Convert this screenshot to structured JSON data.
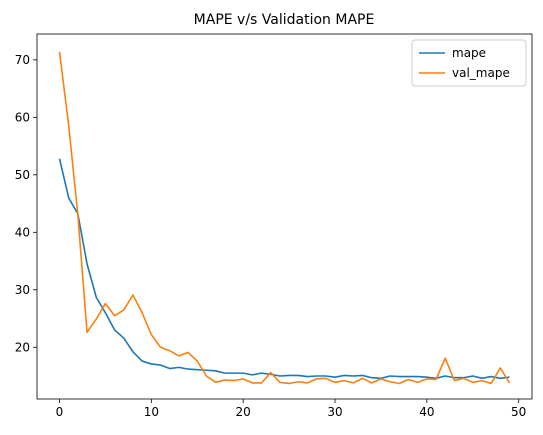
{
  "chart_data": {
    "type": "line",
    "title": "MAPE v/s Validation MAPE",
    "xlabel": "",
    "ylabel": "",
    "xlim": [
      -2.45,
      51.45
    ],
    "ylim": [
      11.0,
      74.5
    ],
    "xticks": [
      0,
      10,
      20,
      30,
      40,
      50
    ],
    "yticks": [
      20,
      30,
      40,
      50,
      60,
      70
    ],
    "grid": false,
    "legend": "top-right",
    "x": [
      0,
      1,
      2,
      3,
      4,
      5,
      6,
      7,
      8,
      9,
      10,
      11,
      12,
      13,
      14,
      15,
      16,
      17,
      18,
      19,
      20,
      21,
      22,
      23,
      24,
      25,
      26,
      27,
      28,
      29,
      30,
      31,
      32,
      33,
      34,
      35,
      36,
      37,
      38,
      39,
      40,
      41,
      42,
      43,
      44,
      45,
      46,
      47,
      48,
      49
    ],
    "series": [
      {
        "name": "mape",
        "color": "#1f77b4",
        "values": [
          52.8,
          46.0,
          43.2,
          34.5,
          28.7,
          26.0,
          23.0,
          21.6,
          19.2,
          17.6,
          17.1,
          16.9,
          16.3,
          16.5,
          16.2,
          16.1,
          16.0,
          15.9,
          15.5,
          15.5,
          15.5,
          15.2,
          15.5,
          15.3,
          15.0,
          15.1,
          15.1,
          14.9,
          15.0,
          15.0,
          14.8,
          15.1,
          15.0,
          15.1,
          14.7,
          14.6,
          15.0,
          14.9,
          14.9,
          14.9,
          14.8,
          14.6,
          15.0,
          14.7,
          14.7,
          15.0,
          14.6,
          14.9,
          14.6,
          14.8
        ]
      },
      {
        "name": "val_mape",
        "color": "#ff7f0e",
        "values": [
          71.4,
          58.6,
          43.0,
          22.6,
          24.9,
          27.6,
          25.5,
          26.5,
          29.1,
          26.0,
          22.2,
          20.0,
          19.4,
          18.5,
          19.1,
          17.6,
          15.0,
          13.9,
          14.3,
          14.2,
          14.5,
          13.8,
          13.8,
          15.6,
          13.9,
          13.7,
          14.0,
          13.8,
          14.5,
          14.6,
          13.9,
          14.2,
          13.8,
          14.6,
          13.8,
          14.5,
          14.0,
          13.7,
          14.4,
          13.9,
          14.5,
          14.4,
          18.1,
          14.2,
          14.6,
          13.9,
          14.2,
          13.7,
          16.4,
          13.8
        ]
      }
    ]
  }
}
